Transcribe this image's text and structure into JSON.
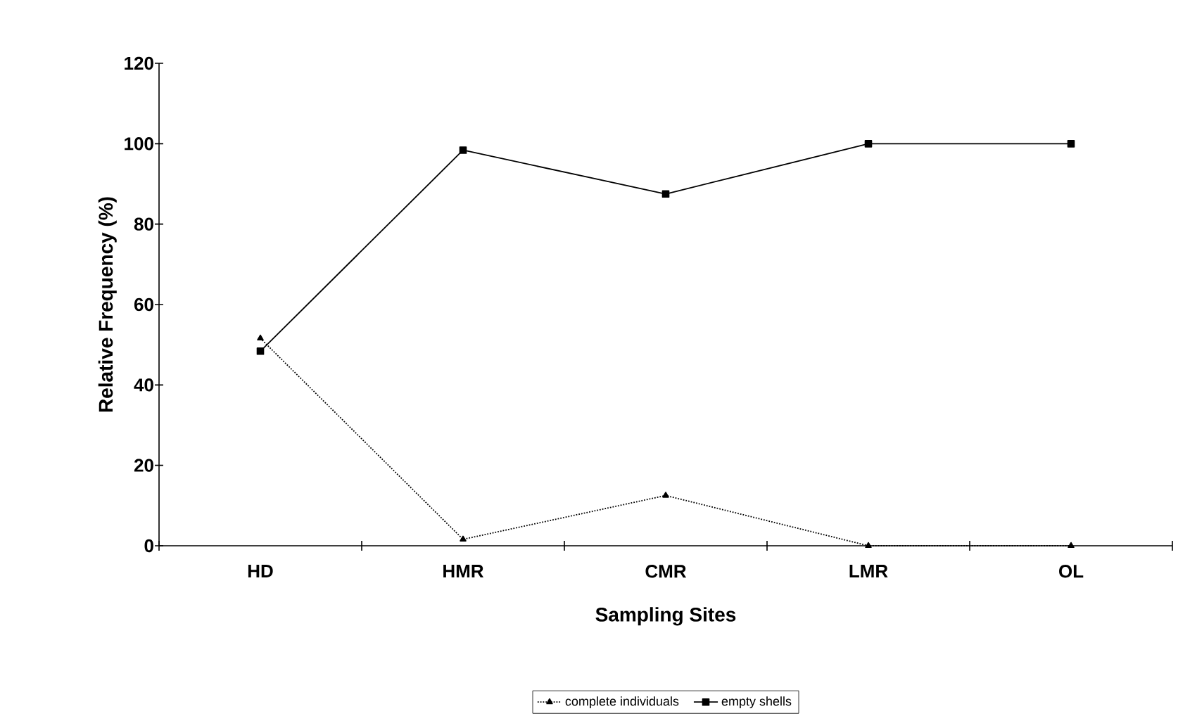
{
  "chart_data": {
    "type": "line",
    "xlabel": "Sampling Sites",
    "ylabel": "Relative Frequency (%)",
    "categories": [
      "HD",
      "HMR",
      "CMR",
      "LMR",
      "OL"
    ],
    "series": [
      {
        "name": "complete individuals",
        "color": "#000000",
        "values": [
          51.6,
          1.6,
          12.5,
          0,
          0
        ],
        "marker": "triangle",
        "line_style": "dotted"
      },
      {
        "name": "empty shells",
        "color": "#000000",
        "values": [
          48.4,
          98.4,
          87.5,
          100,
          100
        ],
        "marker": "square",
        "line_style": "solid"
      }
    ],
    "ylim": [
      0,
      120
    ],
    "yticks": [
      0,
      20,
      40,
      60,
      80,
      100,
      120
    ],
    "grid": false,
    "legend": "bottom"
  }
}
